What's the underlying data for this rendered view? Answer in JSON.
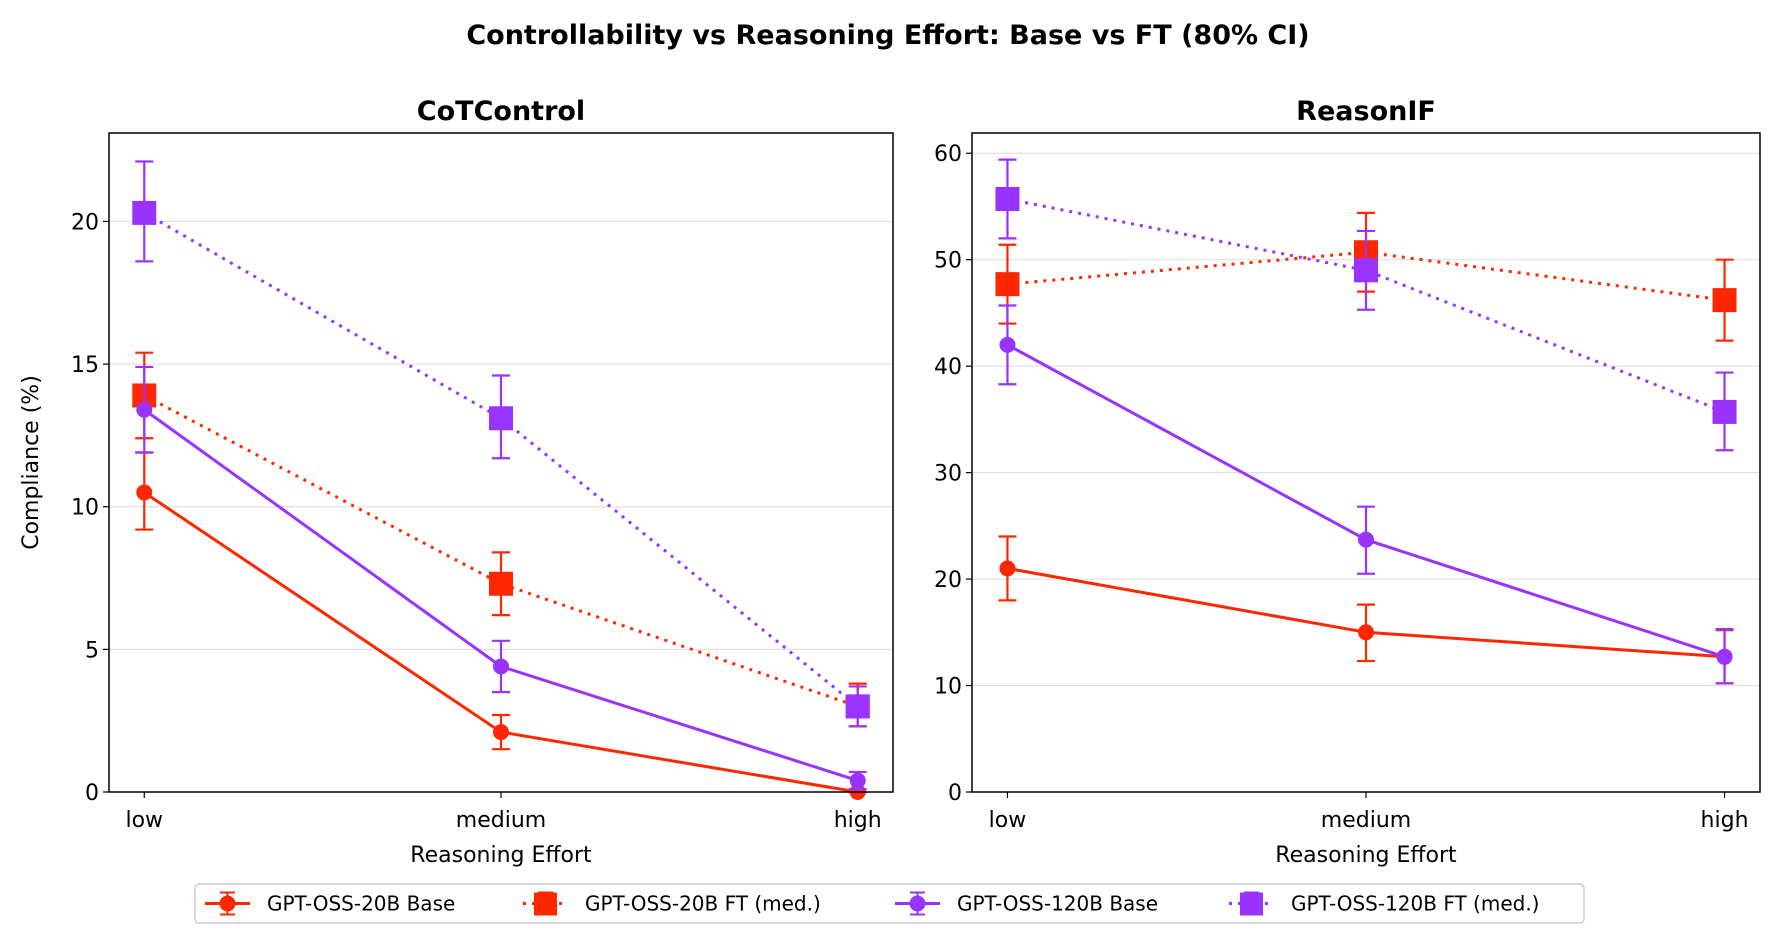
{
  "chart_data": {
    "title": "Controllability vs Reasoning Effort: Base vs FT (80% CI)",
    "type": "line",
    "categories": [
      "low",
      "medium",
      "high"
    ],
    "colors": {
      "GPT-OSS-20B": "#ff2600",
      "GPT-OSS-120B": "#9933ff"
    },
    "legend": {
      "placement": "bottom-center",
      "entries": [
        {
          "name": "GPT-OSS-20B Base",
          "color": "#ff2600",
          "linestyle": "solid",
          "marker": "circle"
        },
        {
          "name": "GPT-OSS-20B FT (med.)",
          "color": "#ff2600",
          "linestyle": "dotted",
          "marker": "square"
        },
        {
          "name": "GPT-OSS-120B Base",
          "color": "#9933ff",
          "linestyle": "solid",
          "marker": "circle"
        },
        {
          "name": "GPT-OSS-120B FT (med.)",
          "color": "#9933ff",
          "linestyle": "dotted",
          "marker": "square"
        }
      ]
    },
    "panels": [
      {
        "title": "CoTControl",
        "xlabel": "Reasoning Effort",
        "ylabel": "Compliance (%)",
        "ylim": [
          0,
          23.1
        ],
        "yticks": [
          0,
          5,
          10,
          15,
          20
        ],
        "grid": "horizontal",
        "series": [
          {
            "name": "GPT-OSS-20B Base",
            "values": [
              10.5,
              2.1,
              0.0
            ],
            "ci_low": [
              9.2,
              1.5,
              0.0
            ],
            "ci_high": [
              11.9,
              2.7,
              0.0
            ]
          },
          {
            "name": "GPT-OSS-20B FT (med.)",
            "values": [
              13.9,
              7.3,
              3.0
            ],
            "ci_low": [
              12.4,
              6.2,
              2.3
            ],
            "ci_high": [
              15.4,
              8.4,
              3.8
            ]
          },
          {
            "name": "GPT-OSS-120B Base",
            "values": [
              13.4,
              4.4,
              0.4
            ],
            "ci_low": [
              11.9,
              3.5,
              0.1
            ],
            "ci_high": [
              14.9,
              5.3,
              0.7
            ]
          },
          {
            "name": "GPT-OSS-120B FT (med.)",
            "values": [
              20.3,
              13.1,
              3.0
            ],
            "ci_low": [
              18.6,
              11.7,
              2.3
            ],
            "ci_high": [
              22.1,
              14.6,
              3.7
            ]
          }
        ]
      },
      {
        "title": "ReasonIF",
        "xlabel": "Reasoning Effort",
        "ylabel": "",
        "ylim": [
          0,
          61.9
        ],
        "yticks": [
          0,
          10,
          20,
          30,
          40,
          50,
          60
        ],
        "grid": "horizontal",
        "series": [
          {
            "name": "GPT-OSS-20B Base",
            "values": [
              21.0,
              15.0,
              12.7
            ],
            "ci_low": [
              18.0,
              12.3,
              10.2
            ],
            "ci_high": [
              24.0,
              17.6,
              15.2
            ]
          },
          {
            "name": "GPT-OSS-20B FT (med.)",
            "values": [
              47.7,
              50.7,
              46.2
            ],
            "ci_low": [
              44.0,
              47.0,
              42.4
            ],
            "ci_high": [
              51.4,
              54.4,
              50.0
            ]
          },
          {
            "name": "GPT-OSS-120B Base",
            "values": [
              42.0,
              23.7,
              12.7
            ],
            "ci_low": [
              38.3,
              20.5,
              10.2
            ],
            "ci_high": [
              45.7,
              26.8,
              15.3
            ]
          },
          {
            "name": "GPT-OSS-120B FT (med.)",
            "values": [
              55.7,
              49.0,
              35.7
            ],
            "ci_low": [
              52.0,
              45.3,
              32.1
            ],
            "ci_high": [
              59.4,
              52.7,
              39.4
            ]
          }
        ]
      }
    ]
  }
}
